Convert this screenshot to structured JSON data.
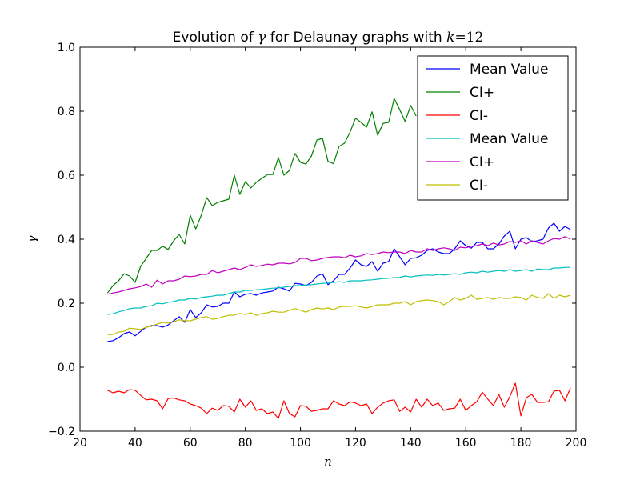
{
  "chart_data": {
    "type": "line",
    "title": "Evolution of γ for Delaunay graphs with k=12",
    "title_parts": {
      "prefix": "Evolution of ",
      "gamma": "γ",
      "middle": " for Delaunay graphs with ",
      "k": "k",
      "eq": "=12"
    },
    "xlabel": "n",
    "ylabel": "γ",
    "xlim": [
      20,
      200
    ],
    "ylim": [
      -0.2,
      1.0
    ],
    "xticks": [
      "20",
      "40",
      "60",
      "80",
      "100",
      "120",
      "140",
      "160",
      "180",
      "200"
    ],
    "yticks": [
      "−0.2",
      "0.0",
      "0.2",
      "0.4",
      "0.6",
      "0.8",
      "1.0"
    ],
    "grid": false,
    "legend_position": "top-right",
    "series": [
      {
        "name": "Mean Value",
        "color": "#0000ff",
        "x": [
          30,
          32,
          34,
          36,
          38,
          40,
          42,
          44,
          46,
          48,
          50,
          52,
          54,
          56,
          58,
          60,
          62,
          64,
          66,
          68,
          70,
          72,
          74,
          76,
          78,
          80,
          82,
          84,
          86,
          88,
          90,
          92,
          94,
          96,
          98,
          100,
          102,
          104,
          106,
          108,
          110,
          112,
          114,
          116,
          118,
          120,
          122,
          124,
          126,
          128,
          130,
          132,
          134,
          136,
          138,
          140,
          142,
          144,
          146,
          148,
          150,
          152,
          154,
          156,
          158,
          160,
          162,
          164,
          166,
          168,
          170,
          172,
          174,
          176,
          178,
          180,
          182,
          184,
          186,
          188,
          190,
          192,
          194,
          196,
          198
        ],
        "y": [
          0.08,
          0.083,
          0.092,
          0.105,
          0.11,
          0.098,
          0.112,
          0.125,
          0.13,
          0.13,
          0.125,
          0.132,
          0.145,
          0.158,
          0.14,
          0.18,
          0.155,
          0.17,
          0.195,
          0.188,
          0.19,
          0.2,
          0.2,
          0.235,
          0.22,
          0.228,
          0.23,
          0.225,
          0.232,
          0.235,
          0.238,
          0.25,
          0.245,
          0.238,
          0.262,
          0.26,
          0.255,
          0.265,
          0.285,
          0.292,
          0.258,
          0.27,
          0.29,
          0.29,
          0.31,
          0.335,
          0.32,
          0.315,
          0.33,
          0.3,
          0.325,
          0.33,
          0.37,
          0.345,
          0.32,
          0.34,
          0.342,
          0.35,
          0.365,
          0.37,
          0.36,
          0.355,
          0.355,
          0.37,
          0.395,
          0.38,
          0.372,
          0.39,
          0.39,
          0.37,
          0.37,
          0.385,
          0.41,
          0.425,
          0.37,
          0.4,
          0.405,
          0.392,
          0.395,
          0.4,
          0.435,
          0.45,
          0.425,
          0.44,
          0.43
        ]
      },
      {
        "name": "CI+",
        "color": "#008000",
        "x": [
          30,
          32,
          34,
          36,
          38,
          40,
          42,
          44,
          46,
          48,
          50,
          52,
          54,
          56,
          58,
          60,
          62,
          64,
          66,
          68,
          70,
          72,
          74,
          76,
          78,
          80,
          82,
          84,
          86,
          88,
          90,
          92,
          94,
          96,
          98,
          100,
          102,
          104,
          106,
          108,
          110,
          112,
          114,
          116,
          118,
          120,
          122,
          124,
          126,
          128,
          130,
          132,
          134,
          136,
          138,
          140,
          142
        ],
        "y": [
          0.232,
          0.255,
          0.27,
          0.292,
          0.285,
          0.265,
          0.315,
          0.34,
          0.365,
          0.365,
          0.378,
          0.368,
          0.395,
          0.415,
          0.385,
          0.475,
          0.432,
          0.475,
          0.53,
          0.505,
          0.515,
          0.52,
          0.525,
          0.6,
          0.54,
          0.58,
          0.56,
          0.578,
          0.59,
          0.602,
          0.602,
          0.655,
          0.6,
          0.615,
          0.668,
          0.64,
          0.635,
          0.66,
          0.71,
          0.715,
          0.643,
          0.636,
          0.69,
          0.7,
          0.735,
          0.778,
          0.765,
          0.75,
          0.798,
          0.725,
          0.762,
          0.765,
          0.84,
          0.805,
          0.768,
          0.818,
          0.785
        ]
      },
      {
        "name": "CI-",
        "color": "#ff0000",
        "x": [
          30,
          32,
          34,
          36,
          38,
          40,
          42,
          44,
          46,
          48,
          50,
          52,
          54,
          56,
          58,
          60,
          62,
          64,
          66,
          68,
          70,
          72,
          74,
          76,
          78,
          80,
          82,
          84,
          86,
          88,
          90,
          92,
          94,
          96,
          98,
          100,
          102,
          104,
          106,
          108,
          110,
          112,
          114,
          116,
          118,
          120,
          122,
          124,
          126,
          128,
          130,
          132,
          134,
          136,
          138,
          140,
          142,
          144,
          146,
          148,
          150,
          152,
          154,
          156,
          158,
          160,
          162,
          164,
          166,
          168,
          170,
          172,
          174,
          176,
          178,
          180,
          182,
          184,
          186,
          188,
          190,
          192,
          194,
          196,
          198
        ],
        "y": [
          -0.072,
          -0.08,
          -0.075,
          -0.08,
          -0.07,
          -0.072,
          -0.088,
          -0.102,
          -0.1,
          -0.105,
          -0.13,
          -0.098,
          -0.096,
          -0.102,
          -0.105,
          -0.115,
          -0.12,
          -0.128,
          -0.145,
          -0.128,
          -0.135,
          -0.12,
          -0.122,
          -0.14,
          -0.1,
          -0.125,
          -0.105,
          -0.135,
          -0.13,
          -0.145,
          -0.14,
          -0.16,
          -0.105,
          -0.145,
          -0.155,
          -0.12,
          -0.122,
          -0.138,
          -0.135,
          -0.13,
          -0.13,
          -0.105,
          -0.115,
          -0.12,
          -0.108,
          -0.112,
          -0.12,
          -0.115,
          -0.145,
          -0.125,
          -0.112,
          -0.105,
          -0.102,
          -0.138,
          -0.125,
          -0.14,
          -0.1,
          -0.125,
          -0.1,
          -0.12,
          -0.112,
          -0.135,
          -0.13,
          -0.128,
          -0.1,
          -0.135,
          -0.12,
          -0.108,
          -0.078,
          -0.1,
          -0.12,
          -0.085,
          -0.125,
          -0.092,
          -0.05,
          -0.152,
          -0.095,
          -0.085,
          -0.11,
          -0.11,
          -0.108,
          -0.075,
          -0.072,
          -0.105,
          -0.065
        ]
      },
      {
        "name": "Mean Value",
        "color": "#00bfbf",
        "x": [
          30,
          32,
          34,
          36,
          38,
          40,
          42,
          44,
          46,
          48,
          50,
          52,
          54,
          56,
          58,
          60,
          62,
          64,
          66,
          68,
          70,
          72,
          74,
          76,
          78,
          80,
          82,
          84,
          86,
          88,
          90,
          92,
          94,
          96,
          98,
          100,
          102,
          104,
          106,
          108,
          110,
          112,
          114,
          116,
          118,
          120,
          122,
          124,
          126,
          128,
          130,
          132,
          134,
          136,
          138,
          140,
          142,
          144,
          146,
          148,
          150,
          152,
          154,
          156,
          158,
          160,
          162,
          164,
          166,
          168,
          170,
          172,
          174,
          176,
          178,
          180,
          182,
          184,
          186,
          188,
          190,
          192,
          194,
          196,
          198
        ],
        "y": [
          0.165,
          0.167,
          0.173,
          0.177,
          0.183,
          0.185,
          0.185,
          0.19,
          0.192,
          0.2,
          0.198,
          0.203,
          0.205,
          0.21,
          0.21,
          0.215,
          0.213,
          0.218,
          0.22,
          0.222,
          0.225,
          0.225,
          0.23,
          0.235,
          0.235,
          0.24,
          0.24,
          0.242,
          0.243,
          0.245,
          0.247,
          0.248,
          0.25,
          0.252,
          0.255,
          0.255,
          0.257,
          0.258,
          0.26,
          0.262,
          0.263,
          0.265,
          0.267,
          0.265,
          0.27,
          0.27,
          0.27,
          0.272,
          0.273,
          0.275,
          0.277,
          0.278,
          0.28,
          0.28,
          0.285,
          0.282,
          0.285,
          0.287,
          0.288,
          0.287,
          0.29,
          0.288,
          0.29,
          0.292,
          0.29,
          0.295,
          0.297,
          0.295,
          0.3,
          0.297,
          0.3,
          0.302,
          0.3,
          0.305,
          0.3,
          0.302,
          0.305,
          0.3,
          0.307,
          0.305,
          0.305,
          0.31,
          0.31,
          0.312,
          0.312
        ]
      },
      {
        "name": "CI+",
        "color": "#bf00bf",
        "x": [
          30,
          32,
          34,
          36,
          38,
          40,
          42,
          44,
          46,
          48,
          50,
          52,
          54,
          56,
          58,
          60,
          62,
          64,
          66,
          68,
          70,
          72,
          74,
          76,
          78,
          80,
          82,
          84,
          86,
          88,
          90,
          92,
          94,
          96,
          98,
          100,
          102,
          104,
          106,
          108,
          110,
          112,
          114,
          116,
          118,
          120,
          122,
          124,
          126,
          128,
          130,
          132,
          134,
          136,
          138,
          140,
          142,
          144,
          146,
          148,
          150,
          152,
          154,
          156,
          158,
          160,
          162,
          164,
          166,
          168,
          170,
          172,
          174,
          176,
          178,
          180,
          182,
          184,
          186,
          188,
          190,
          192,
          194,
          196,
          198
        ],
        "y": [
          0.228,
          0.232,
          0.235,
          0.24,
          0.245,
          0.248,
          0.252,
          0.26,
          0.25,
          0.272,
          0.26,
          0.27,
          0.27,
          0.275,
          0.285,
          0.283,
          0.285,
          0.29,
          0.29,
          0.302,
          0.295,
          0.3,
          0.305,
          0.31,
          0.305,
          0.312,
          0.32,
          0.315,
          0.318,
          0.322,
          0.32,
          0.325,
          0.325,
          0.323,
          0.327,
          0.34,
          0.34,
          0.333,
          0.335,
          0.34,
          0.343,
          0.345,
          0.345,
          0.342,
          0.35,
          0.345,
          0.348,
          0.355,
          0.352,
          0.355,
          0.36,
          0.358,
          0.36,
          0.36,
          0.355,
          0.365,
          0.36,
          0.36,
          0.37,
          0.365,
          0.37,
          0.373,
          0.37,
          0.365,
          0.375,
          0.373,
          0.378,
          0.38,
          0.385,
          0.38,
          0.388,
          0.382,
          0.385,
          0.393,
          0.39,
          0.395,
          0.385,
          0.395,
          0.39,
          0.385,
          0.395,
          0.402,
          0.4,
          0.408,
          0.4
        ]
      },
      {
        "name": "CI-",
        "color": "#bfbf00",
        "x": [
          30,
          32,
          34,
          36,
          38,
          40,
          42,
          44,
          46,
          48,
          50,
          52,
          54,
          56,
          58,
          60,
          62,
          64,
          66,
          68,
          70,
          72,
          74,
          76,
          78,
          80,
          82,
          84,
          86,
          88,
          90,
          92,
          94,
          96,
          98,
          100,
          102,
          104,
          106,
          108,
          110,
          112,
          114,
          116,
          118,
          120,
          122,
          124,
          126,
          128,
          130,
          132,
          134,
          136,
          138,
          140,
          142,
          144,
          146,
          148,
          150,
          152,
          154,
          156,
          158,
          160,
          162,
          164,
          166,
          168,
          170,
          172,
          174,
          176,
          178,
          180,
          182,
          184,
          186,
          188,
          190,
          192,
          194,
          196,
          198
        ],
        "y": [
          0.102,
          0.102,
          0.11,
          0.112,
          0.122,
          0.12,
          0.118,
          0.125,
          0.128,
          0.135,
          0.14,
          0.138,
          0.142,
          0.148,
          0.145,
          0.145,
          0.15,
          0.155,
          0.158,
          0.15,
          0.152,
          0.158,
          0.162,
          0.163,
          0.168,
          0.165,
          0.17,
          0.162,
          0.168,
          0.17,
          0.175,
          0.172,
          0.172,
          0.178,
          0.183,
          0.178,
          0.172,
          0.18,
          0.185,
          0.182,
          0.185,
          0.18,
          0.188,
          0.19,
          0.19,
          0.192,
          0.188,
          0.185,
          0.19,
          0.195,
          0.195,
          0.195,
          0.2,
          0.2,
          0.205,
          0.195,
          0.205,
          0.208,
          0.21,
          0.208,
          0.205,
          0.195,
          0.205,
          0.218,
          0.21,
          0.215,
          0.225,
          0.212,
          0.215,
          0.218,
          0.212,
          0.218,
          0.215,
          0.215,
          0.22,
          0.218,
          0.21,
          0.225,
          0.218,
          0.215,
          0.23,
          0.215,
          0.225,
          0.22,
          0.225
        ]
      }
    ]
  }
}
